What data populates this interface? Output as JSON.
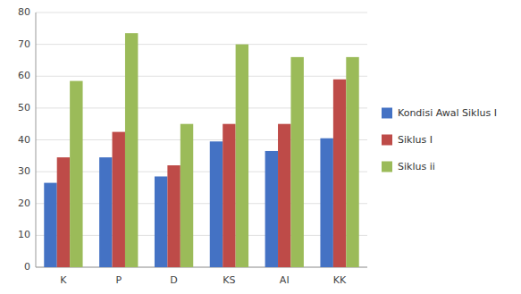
{
  "chart_data": {
    "type": "bar",
    "categories": [
      "K",
      "P",
      "D",
      "KS",
      "AI",
      "KK"
    ],
    "series": [
      {
        "name": "Kondisi Awal Siklus I",
        "color": "#4472C4",
        "values": [
          26.5,
          34.5,
          28.5,
          39.5,
          36.5,
          40.5
        ]
      },
      {
        "name": "Siklus I",
        "color": "#BE4B48",
        "values": [
          34.5,
          42.5,
          32,
          45,
          45,
          59
        ]
      },
      {
        "name": "Siklus ii",
        "color": "#9BBB59",
        "values": [
          58.5,
          73.5,
          45,
          70,
          66,
          66
        ]
      }
    ],
    "ylim": [
      0,
      80
    ],
    "yticks": [
      0,
      10,
      20,
      30,
      40,
      50,
      60,
      70,
      80
    ],
    "grid": true,
    "legend": "right"
  }
}
